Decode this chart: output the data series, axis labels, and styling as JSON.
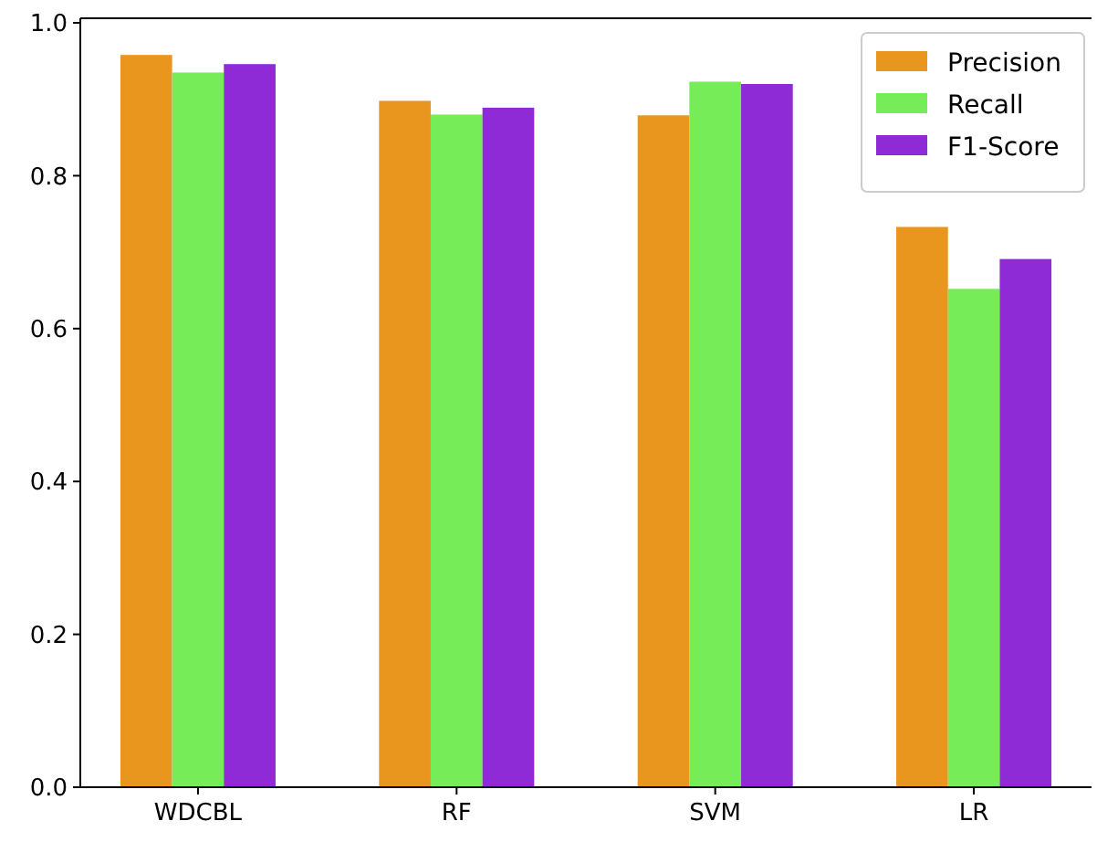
{
  "chart_data": {
    "type": "bar",
    "categories": [
      "WDCBL",
      "RF",
      "SVM",
      "LR"
    ],
    "series": [
      {
        "name": "Precision",
        "color": "#e8961e",
        "values": [
          0.958,
          0.898,
          0.879,
          0.733
        ]
      },
      {
        "name": "Recall",
        "color": "#76ec58",
        "values": [
          0.935,
          0.88,
          0.923,
          0.652
        ]
      },
      {
        "name": "F1-Score",
        "color": "#8e2ad6",
        "values": [
          0.946,
          0.889,
          0.92,
          0.691
        ]
      }
    ],
    "ylim": [
      0,
      1.006
    ],
    "yticks": [
      {
        "value": 0,
        "label": "0.0"
      },
      0.2,
      0.4,
      0.6,
      0.8,
      {
        "value": 1,
        "label": "1.0"
      }
    ],
    "legend": "top right",
    "grid": false
  }
}
